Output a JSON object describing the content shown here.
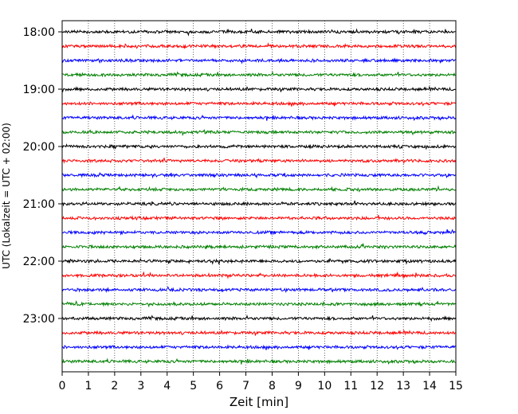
{
  "chart_data": {
    "type": "line",
    "title": "",
    "xlabel": "Zeit  [min]",
    "ylabel": "UTC (Lokalzeit = UTC + 02:00)",
    "xlim": [
      0,
      15
    ],
    "x_ticks": [
      "0",
      "1",
      "2",
      "3",
      "4",
      "5",
      "6",
      "7",
      "8",
      "9",
      "10",
      "11",
      "12",
      "13",
      "14",
      "15"
    ],
    "y_ticks": [
      "18:00",
      "19:00",
      "20:00",
      "21:00",
      "22:00",
      "23:00"
    ],
    "grid": "vertical dotted",
    "trace_interval_minutes": 15,
    "trace_start": "18:00",
    "trace_count": 24,
    "trace_colors": [
      "#000000",
      "#ff0000",
      "#0000ff",
      "#008000"
    ]
  }
}
